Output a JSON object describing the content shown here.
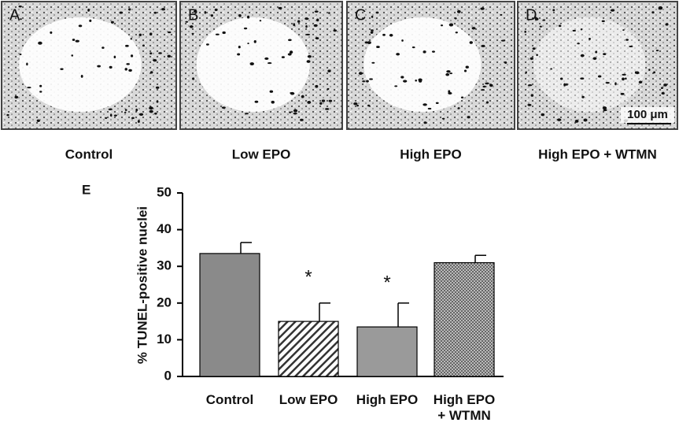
{
  "panels": [
    {
      "letter": "A",
      "caption": "Control"
    },
    {
      "letter": "B",
      "caption": "Low EPO"
    },
    {
      "letter": "C",
      "caption": "High EPO"
    },
    {
      "letter": "D",
      "caption": "High EPO + WTMN",
      "scale_bar": "100 μm"
    }
  ],
  "chart_data": {
    "type": "bar",
    "panel_label": "E",
    "ylabel": "% TUNEL-positive nuclei",
    "categories": [
      "Control",
      "Low EPO",
      "High EPO",
      "High EPO\n+ WTMN"
    ],
    "values": [
      33.5,
      15,
      13.5,
      31
    ],
    "errors": [
      3,
      5,
      6.5,
      2
    ],
    "significance": [
      null,
      "*",
      "*",
      null
    ],
    "fills": [
      "solid",
      "hatch",
      "solid",
      "crosshatch"
    ],
    "colors": [
      "#8a8a8a",
      "#555555",
      "#9a9a9a",
      "#777777"
    ],
    "ylim": [
      0,
      50
    ],
    "yticks": [
      0,
      10,
      20,
      30,
      40,
      50
    ]
  }
}
